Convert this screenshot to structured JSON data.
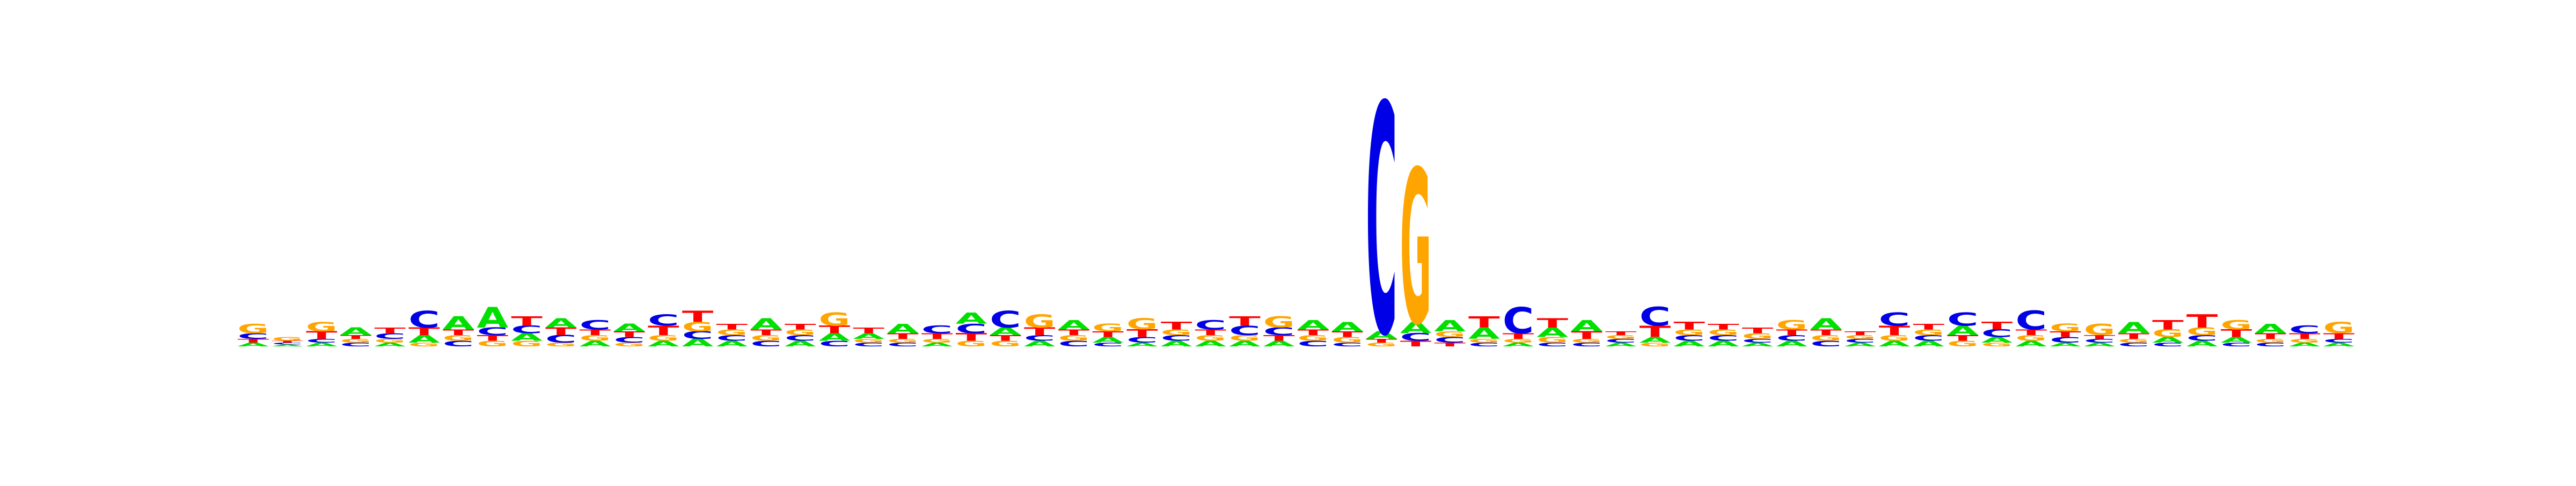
{
  "chart_data": {
    "type": "sequence-logo",
    "alphabet": [
      "A",
      "C",
      "G",
      "T"
    ],
    "colors": {
      "A": "#00e000",
      "C": "#0000e6",
      "G": "#ffa500",
      "T": "#ff0000"
    },
    "ylim": [
      0,
      2
    ],
    "positions": [
      {
        "A": 0.02,
        "C": 0.03,
        "G": 0.05,
        "T": 0.02
      },
      {
        "A": 0.01,
        "C": 0.01,
        "G": 0.02,
        "T": 0.01
      },
      {
        "A": 0.02,
        "C": 0.02,
        "G": 0.05,
        "T": 0.04
      },
      {
        "A": 0.04,
        "C": 0.02,
        "G": 0.02,
        "T": 0.02
      },
      {
        "A": 0.02,
        "C": 0.03,
        "G": 0.02,
        "T": 0.03
      },
      {
        "A": 0.04,
        "C": 0.09,
        "G": 0.02,
        "T": 0.04
      },
      {
        "A": 0.07,
        "C": 0.03,
        "G": 0.03,
        "T": 0.03
      },
      {
        "A": 0.11,
        "C": 0.04,
        "G": 0.03,
        "T": 0.03
      },
      {
        "A": 0.04,
        "C": 0.04,
        "G": 0.03,
        "T": 0.05
      },
      {
        "A": 0.05,
        "C": 0.04,
        "G": 0.02,
        "T": 0.04
      },
      {
        "A": 0.03,
        "C": 0.05,
        "G": 0.03,
        "T": 0.03
      },
      {
        "A": 0.04,
        "C": 0.03,
        "G": 0.02,
        "T": 0.03
      },
      {
        "A": 0.03,
        "C": 0.06,
        "G": 0.03,
        "T": 0.05
      },
      {
        "A": 0.04,
        "C": 0.04,
        "G": 0.05,
        "T": 0.06
      },
      {
        "A": 0.03,
        "C": 0.03,
        "G": 0.03,
        "T": 0.03
      },
      {
        "A": 0.06,
        "C": 0.03,
        "G": 0.03,
        "T": 0.03
      },
      {
        "A": 0.03,
        "C": 0.03,
        "G": 0.03,
        "T": 0.03
      },
      {
        "A": 0.04,
        "C": 0.03,
        "G": 0.07,
        "T": 0.04
      },
      {
        "A": 0.03,
        "C": 0.02,
        "G": 0.02,
        "T": 0.03
      },
      {
        "A": 0.05,
        "C": 0.02,
        "G": 0.02,
        "T": 0.03
      },
      {
        "A": 0.02,
        "C": 0.04,
        "G": 0.02,
        "T": 0.03
      },
      {
        "A": 0.06,
        "C": 0.05,
        "G": 0.03,
        "T": 0.04
      },
      {
        "A": 0.04,
        "C": 0.09,
        "G": 0.03,
        "T": 0.03
      },
      {
        "A": 0.03,
        "C": 0.03,
        "G": 0.07,
        "T": 0.04
      },
      {
        "A": 0.05,
        "C": 0.03,
        "G": 0.03,
        "T": 0.03
      },
      {
        "A": 0.03,
        "C": 0.02,
        "G": 0.04,
        "T": 0.03
      },
      {
        "A": 0.02,
        "C": 0.03,
        "G": 0.06,
        "T": 0.04
      },
      {
        "A": 0.03,
        "C": 0.03,
        "G": 0.03,
        "T": 0.04
      },
      {
        "A": 0.03,
        "C": 0.05,
        "G": 0.03,
        "T": 0.03
      },
      {
        "A": 0.03,
        "C": 0.05,
        "G": 0.03,
        "T": 0.05
      },
      {
        "A": 0.03,
        "C": 0.04,
        "G": 0.06,
        "T": 0.03
      },
      {
        "A": 0.05,
        "C": 0.03,
        "G": 0.03,
        "T": 0.03
      },
      {
        "A": 0.05,
        "C": 0.02,
        "G": 0.03,
        "T": 0.03
      },
      {
        "A": 0.04,
        "C": 1.22,
        "G": 0.02,
        "T": 0.02
      },
      {
        "A": 0.06,
        "C": 0.04,
        "G": 0.82,
        "T": 0.03
      },
      {
        "A": 0.06,
        "C": 0.03,
        "G": 0.03,
        "T": 0.02
      },
      {
        "A": 0.06,
        "C": 0.02,
        "G": 0.02,
        "T": 0.06
      },
      {
        "A": 0.02,
        "C": 0.14,
        "G": 0.02,
        "T": 0.03
      },
      {
        "A": 0.05,
        "C": 0.02,
        "G": 0.03,
        "T": 0.05
      },
      {
        "A": 0.06,
        "C": 0.02,
        "G": 0.02,
        "T": 0.04
      },
      {
        "A": 0.02,
        "C": 0.02,
        "G": 0.02,
        "T": 0.02
      },
      {
        "A": 0.03,
        "C": 0.1,
        "G": 0.02,
        "T": 0.06
      },
      {
        "A": 0.03,
        "C": 0.03,
        "G": 0.03,
        "T": 0.04
      },
      {
        "A": 0.03,
        "C": 0.03,
        "G": 0.03,
        "T": 0.03
      },
      {
        "A": 0.02,
        "C": 0.02,
        "G": 0.03,
        "T": 0.03
      },
      {
        "A": 0.03,
        "C": 0.03,
        "G": 0.05,
        "T": 0.03
      },
      {
        "A": 0.06,
        "C": 0.03,
        "G": 0.03,
        "T": 0.03
      },
      {
        "A": 0.02,
        "C": 0.02,
        "G": 0.02,
        "T": 0.02
      },
      {
        "A": 0.03,
        "C": 0.07,
        "G": 0.03,
        "T": 0.05
      },
      {
        "A": 0.03,
        "C": 0.03,
        "G": 0.03,
        "T": 0.03
      },
      {
        "A": 0.05,
        "C": 0.07,
        "G": 0.03,
        "T": 0.03
      },
      {
        "A": 0.03,
        "C": 0.04,
        "G": 0.02,
        "T": 0.04
      },
      {
        "A": 0.03,
        "C": 0.1,
        "G": 0.03,
        "T": 0.03
      },
      {
        "A": 0.02,
        "C": 0.03,
        "G": 0.04,
        "T": 0.03
      },
      {
        "A": 0.02,
        "C": 0.02,
        "G": 0.06,
        "T": 0.02
      },
      {
        "A": 0.06,
        "C": 0.02,
        "G": 0.02,
        "T": 0.03
      },
      {
        "A": 0.03,
        "C": 0.02,
        "G": 0.04,
        "T": 0.05
      },
      {
        "A": 0.03,
        "C": 0.03,
        "G": 0.04,
        "T": 0.07
      },
      {
        "A": 0.03,
        "C": 0.02,
        "G": 0.05,
        "T": 0.04
      },
      {
        "A": 0.05,
        "C": 0.02,
        "G": 0.02,
        "T": 0.03
      },
      {
        "A": 0.02,
        "C": 0.04,
        "G": 0.02,
        "T": 0.03
      },
      {
        "A": 0.02,
        "C": 0.02,
        "G": 0.06,
        "T": 0.03
      }
    ]
  }
}
